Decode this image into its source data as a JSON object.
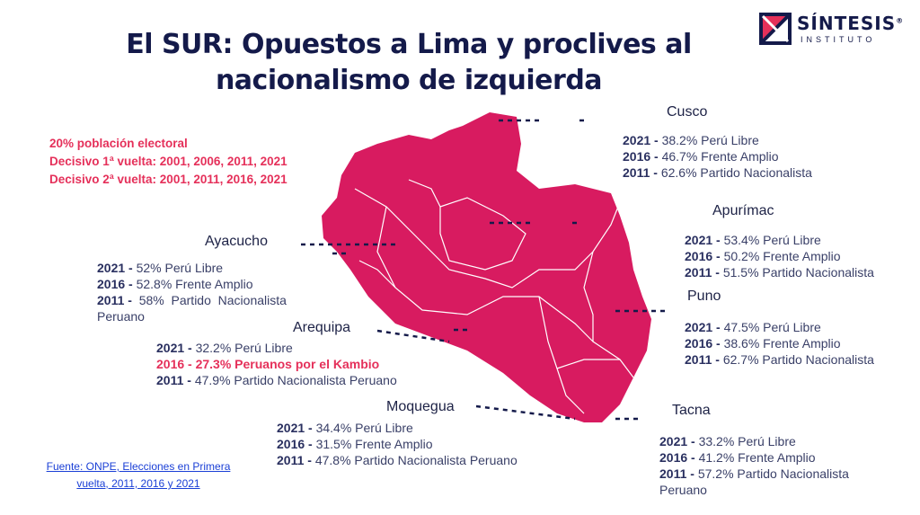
{
  "title": {
    "line1": "El SUR: Opuestos a Lima y proclives al",
    "line2": "nacionalismo de izquierda"
  },
  "logo": {
    "name": "SÍNTESIS",
    "sub": "INSTITUTO",
    "registered": "®"
  },
  "summary": {
    "line1": "20% población electoral",
    "line2": "Decisivo 1ª vuelta: 2001, 2006, 2011, 2021",
    "line3": "Decisivo 2ª vuelta: 2001, 2011, 2016, 2021"
  },
  "regions": {
    "cusco": {
      "name": "Cusco",
      "r2021": {
        "y": "2021 -",
        "t": " 38.2% Perú Libre"
      },
      "r2016": {
        "y": "2016 -",
        "t": " 46.7% Frente Amplio"
      },
      "r2011": {
        "y": "2011 -",
        "t": " 62.6% Partido Nacionalista"
      }
    },
    "apurimac": {
      "name": "Apurímac",
      "r2021": {
        "y": "2021 -",
        "t": " 53.4% Perú Libre"
      },
      "r2016": {
        "y": "2016 -",
        "t": " 50.2% Frente Amplio"
      },
      "r2011": {
        "y": "2011 -",
        "t": " 51.5% Partido Nacionalista"
      }
    },
    "ayacucho": {
      "name": "Ayacucho",
      "r2021": {
        "y": "2021 -",
        "t": " 52% Perú Libre"
      },
      "r2016": {
        "y": "2016 -",
        "t": " 52.8% Frente Amplio"
      },
      "r2011": {
        "y": "2011 -",
        "t": "  58%  Partido  Nacionalista"
      },
      "r2011b": "Peruano"
    },
    "puno": {
      "name": "Puno",
      "r2021": {
        "y": "2021 -",
        "t": " 47.5% Perú Libre"
      },
      "r2016": {
        "y": "2016 -",
        "t": " 38.6% Frente Amplio"
      },
      "r2011": {
        "y": "2011 -",
        "t": " 62.7% Partido Nacionalista"
      }
    },
    "arequipa": {
      "name": "Arequipa",
      "r2021": {
        "y": "2021 -",
        "t": " 32.2% Perú Libre"
      },
      "r2016": "2016 - 27.3% Peruanos por el Kambio",
      "r2011": {
        "y": "2011 -",
        "t": " 47.9% Partido Nacionalista Peruano"
      }
    },
    "moquegua": {
      "name": "Moquegua",
      "r2021": {
        "y": "2021 -",
        "t": " 34.4% Perú Libre"
      },
      "r2016": {
        "y": "2016 -",
        "t": " 31.5% Frente Amplio"
      },
      "r2011": {
        "y": "2011 -",
        "t": " 47.8% Partido Nacionalista Peruano"
      }
    },
    "tacna": {
      "name": "Tacna",
      "r2021": {
        "y": "2021 -",
        "t": " 33.2% Perú Libre"
      },
      "r2016": {
        "y": "2016 -",
        "t": " 41.2% Frente Amplio"
      },
      "r2011": {
        "y": "2011 -",
        "t": " 57.2% Partido Nacionalista"
      },
      "r2011b": "Peruano"
    }
  },
  "source": {
    "line1": "Fuente: ONPE, Elecciones en Primera",
    "line2": "vuelta, 2011, 2016 y 2021"
  },
  "colors": {
    "map": "#d81b60",
    "accent": "#e5305a",
    "navy": "#141a4a"
  }
}
